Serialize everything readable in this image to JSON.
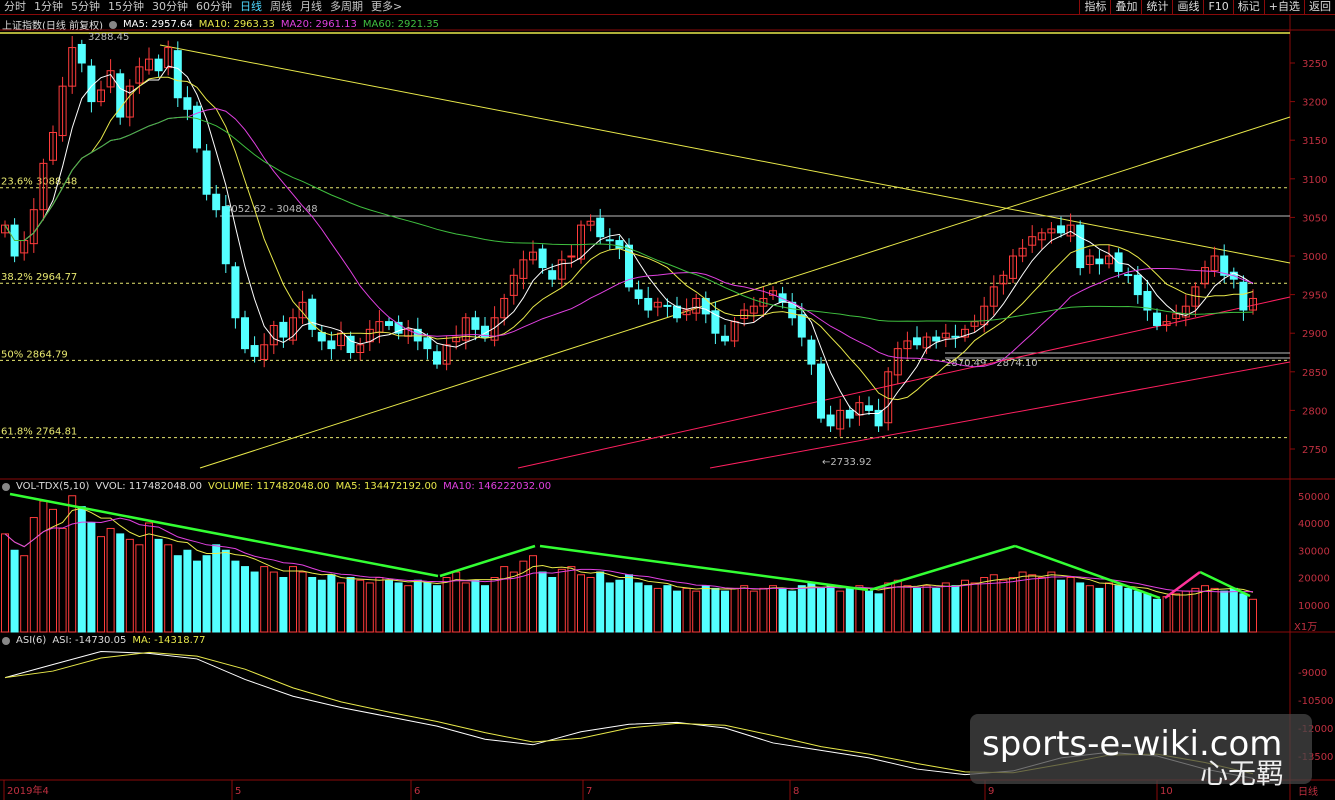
{
  "toolbar": {
    "tabs": [
      "分时",
      "1分钟",
      "5分钟",
      "15分钟",
      "30分钟",
      "60分钟",
      "日线",
      "周线",
      "月线",
      "多周期",
      "更多>"
    ],
    "active_tab": "日线",
    "tools": [
      "指标",
      "叠加",
      "统计",
      "画线",
      "F10",
      "标记",
      "+自选",
      "返回"
    ]
  },
  "legend_main": {
    "title": "上证指数(日线 前复权)",
    "ma5": "MA5: 2957.64",
    "ma10": "MA10: 2963.33",
    "ma20": "MA20: 2961.13",
    "ma60": "MA60: 2921.35"
  },
  "legend_vol": {
    "title": "VOL-TDX(5,10)",
    "vvol": "VVOL: 117482048.00",
    "volume": "VOLUME: 117482048.00",
    "ma5": "MA5: 134472192.00",
    "ma10": "MA10: 146222032.00"
  },
  "legend_asi": {
    "title": "ASI(6)",
    "asi": "ASI: -14730.05",
    "ma": "MA: -14318.77"
  },
  "annotations": {
    "high": "3288.45",
    "low": "2733.92",
    "gap1": "3052.62 - 3048.48",
    "gap2": "2870.49 - 2874.10"
  },
  "fib_levels": [
    {
      "label": "23.6% 3088.48",
      "value": 3088.48
    },
    {
      "label": "38.2% 2964.77",
      "value": 2964.77
    },
    {
      "label": "50% 2864.79",
      "value": 2864.79
    },
    {
      "label": "61.8% 2764.81",
      "value": 2764.81
    }
  ],
  "colors": {
    "up": "#ff3c3c",
    "down": "#54ffff",
    "ma5": "#ffffff",
    "ma10": "#e8e84a",
    "ma20": "#e040e0",
    "ma60": "#3fbf3f",
    "grid": "#8a0a0a"
  },
  "chart_data": [
    {
      "type": "candlestick",
      "title": "上证指数",
      "ylim": [
        2720,
        3300
      ],
      "y_ticks": [
        "3250",
        "3200",
        "3150",
        "3100",
        "3050",
        "3000",
        "2950",
        "2900",
        "2850",
        "2800",
        "2750"
      ],
      "x_ticks": [
        "2019年4",
        "5",
        "6",
        "7",
        "8",
        "9",
        "10"
      ],
      "close": [
        3040,
        3000,
        3020,
        3060,
        3120,
        3160,
        3220,
        3270,
        3250,
        3200,
        3215,
        3240,
        3180,
        3220,
        3245,
        3255,
        3240,
        3270,
        3205,
        3190,
        3140,
        3080,
        3060,
        2990,
        2920,
        2880,
        2870,
        2885,
        2910,
        2895,
        2920,
        2940,
        2905,
        2890,
        2880,
        2900,
        2875,
        2885,
        2905,
        2915,
        2910,
        2900,
        2905,
        2890,
        2880,
        2860,
        2885,
        2895,
        2920,
        2905,
        2895,
        2920,
        2945,
        2975,
        2995,
        3005,
        2985,
        2970,
        2995,
        3000,
        3040,
        3045,
        3025,
        3020,
        3010,
        2960,
        2945,
        2930,
        2940,
        2935,
        2920,
        2930,
        2945,
        2925,
        2900,
        2890,
        2915,
        2930,
        2935,
        2945,
        2955,
        2940,
        2920,
        2895,
        2860,
        2790,
        2780,
        2800,
        2790,
        2810,
        2800,
        2780,
        2850,
        2880,
        2890,
        2885,
        2895,
        2890,
        2900,
        2895,
        2905,
        2915,
        2935,
        2960,
        2975,
        3000,
        3010,
        3025,
        3030,
        3035,
        3030,
        3040,
        2985,
        3000,
        2990,
        3000,
        2980,
        2975,
        2950,
        2930,
        2910,
        2915,
        2925,
        2935,
        2960,
        2985,
        3000,
        2975,
        2970,
        2930,
        2945
      ]
    },
    {
      "type": "bar",
      "title": "VOL-TDX(5,10)",
      "unit": "X1万",
      "y_ticks": [
        "50000",
        "40000",
        "30000",
        "20000",
        "10000"
      ],
      "values": [
        36000,
        30000,
        28000,
        42000,
        48000,
        45000,
        38000,
        50000,
        46000,
        40000,
        35000,
        38000,
        36000,
        34000,
        32000,
        40000,
        34000,
        32000,
        28000,
        30000,
        26000,
        28000,
        32000,
        30000,
        26000,
        24000,
        22000,
        24000,
        22000,
        20000,
        24000,
        22000,
        20000,
        19000,
        21000,
        18000,
        20000,
        19000,
        18000,
        20000,
        19000,
        18000,
        17000,
        19000,
        18000,
        17000,
        20000,
        22000,
        18000,
        19000,
        17000,
        20000,
        24000,
        22000,
        26000,
        28000,
        22000,
        20000,
        23000,
        24000,
        21000,
        20000,
        22000,
        18000,
        19000,
        21000,
        18000,
        17000,
        16000,
        17000,
        15000,
        16000,
        15000,
        17000,
        16000,
        15000,
        16000,
        17000,
        15000,
        16000,
        17000,
        16000,
        15000,
        17000,
        18000,
        16000,
        17000,
        15000,
        16000,
        17000,
        15000,
        14000,
        18000,
        19000,
        17000,
        16000,
        17000,
        16000,
        18000,
        17000,
        19000,
        18000,
        20000,
        21000,
        19000,
        20000,
        22000,
        21000,
        20000,
        22000,
        19000,
        20000,
        18000,
        17000,
        16000,
        18000,
        17000,
        16000,
        15000,
        14000,
        12000,
        13000,
        14000,
        15000,
        16000,
        17000,
        16000,
        15000,
        16000,
        14000,
        12000
      ]
    },
    {
      "type": "line",
      "title": "ASI(6)",
      "y_ticks": [
        "-9000",
        "-10500",
        "-12000",
        "-13500"
      ],
      "asi_every_5": [
        -9300,
        -8600,
        -7900,
        -8000,
        -8300,
        -9400,
        -10300,
        -10900,
        -11400,
        -11900,
        -12600,
        -12900,
        -12200,
        -11800,
        -11700,
        -12000,
        -12800,
        -13200,
        -13600,
        -14200,
        -14500,
        -14300,
        -13600,
        -13300,
        -13500,
        -14200,
        -14700
      ]
    }
  ],
  "period_label": "日线",
  "watermark": {
    "site": "sports-e-wiki.com",
    "author": "心无羁"
  }
}
